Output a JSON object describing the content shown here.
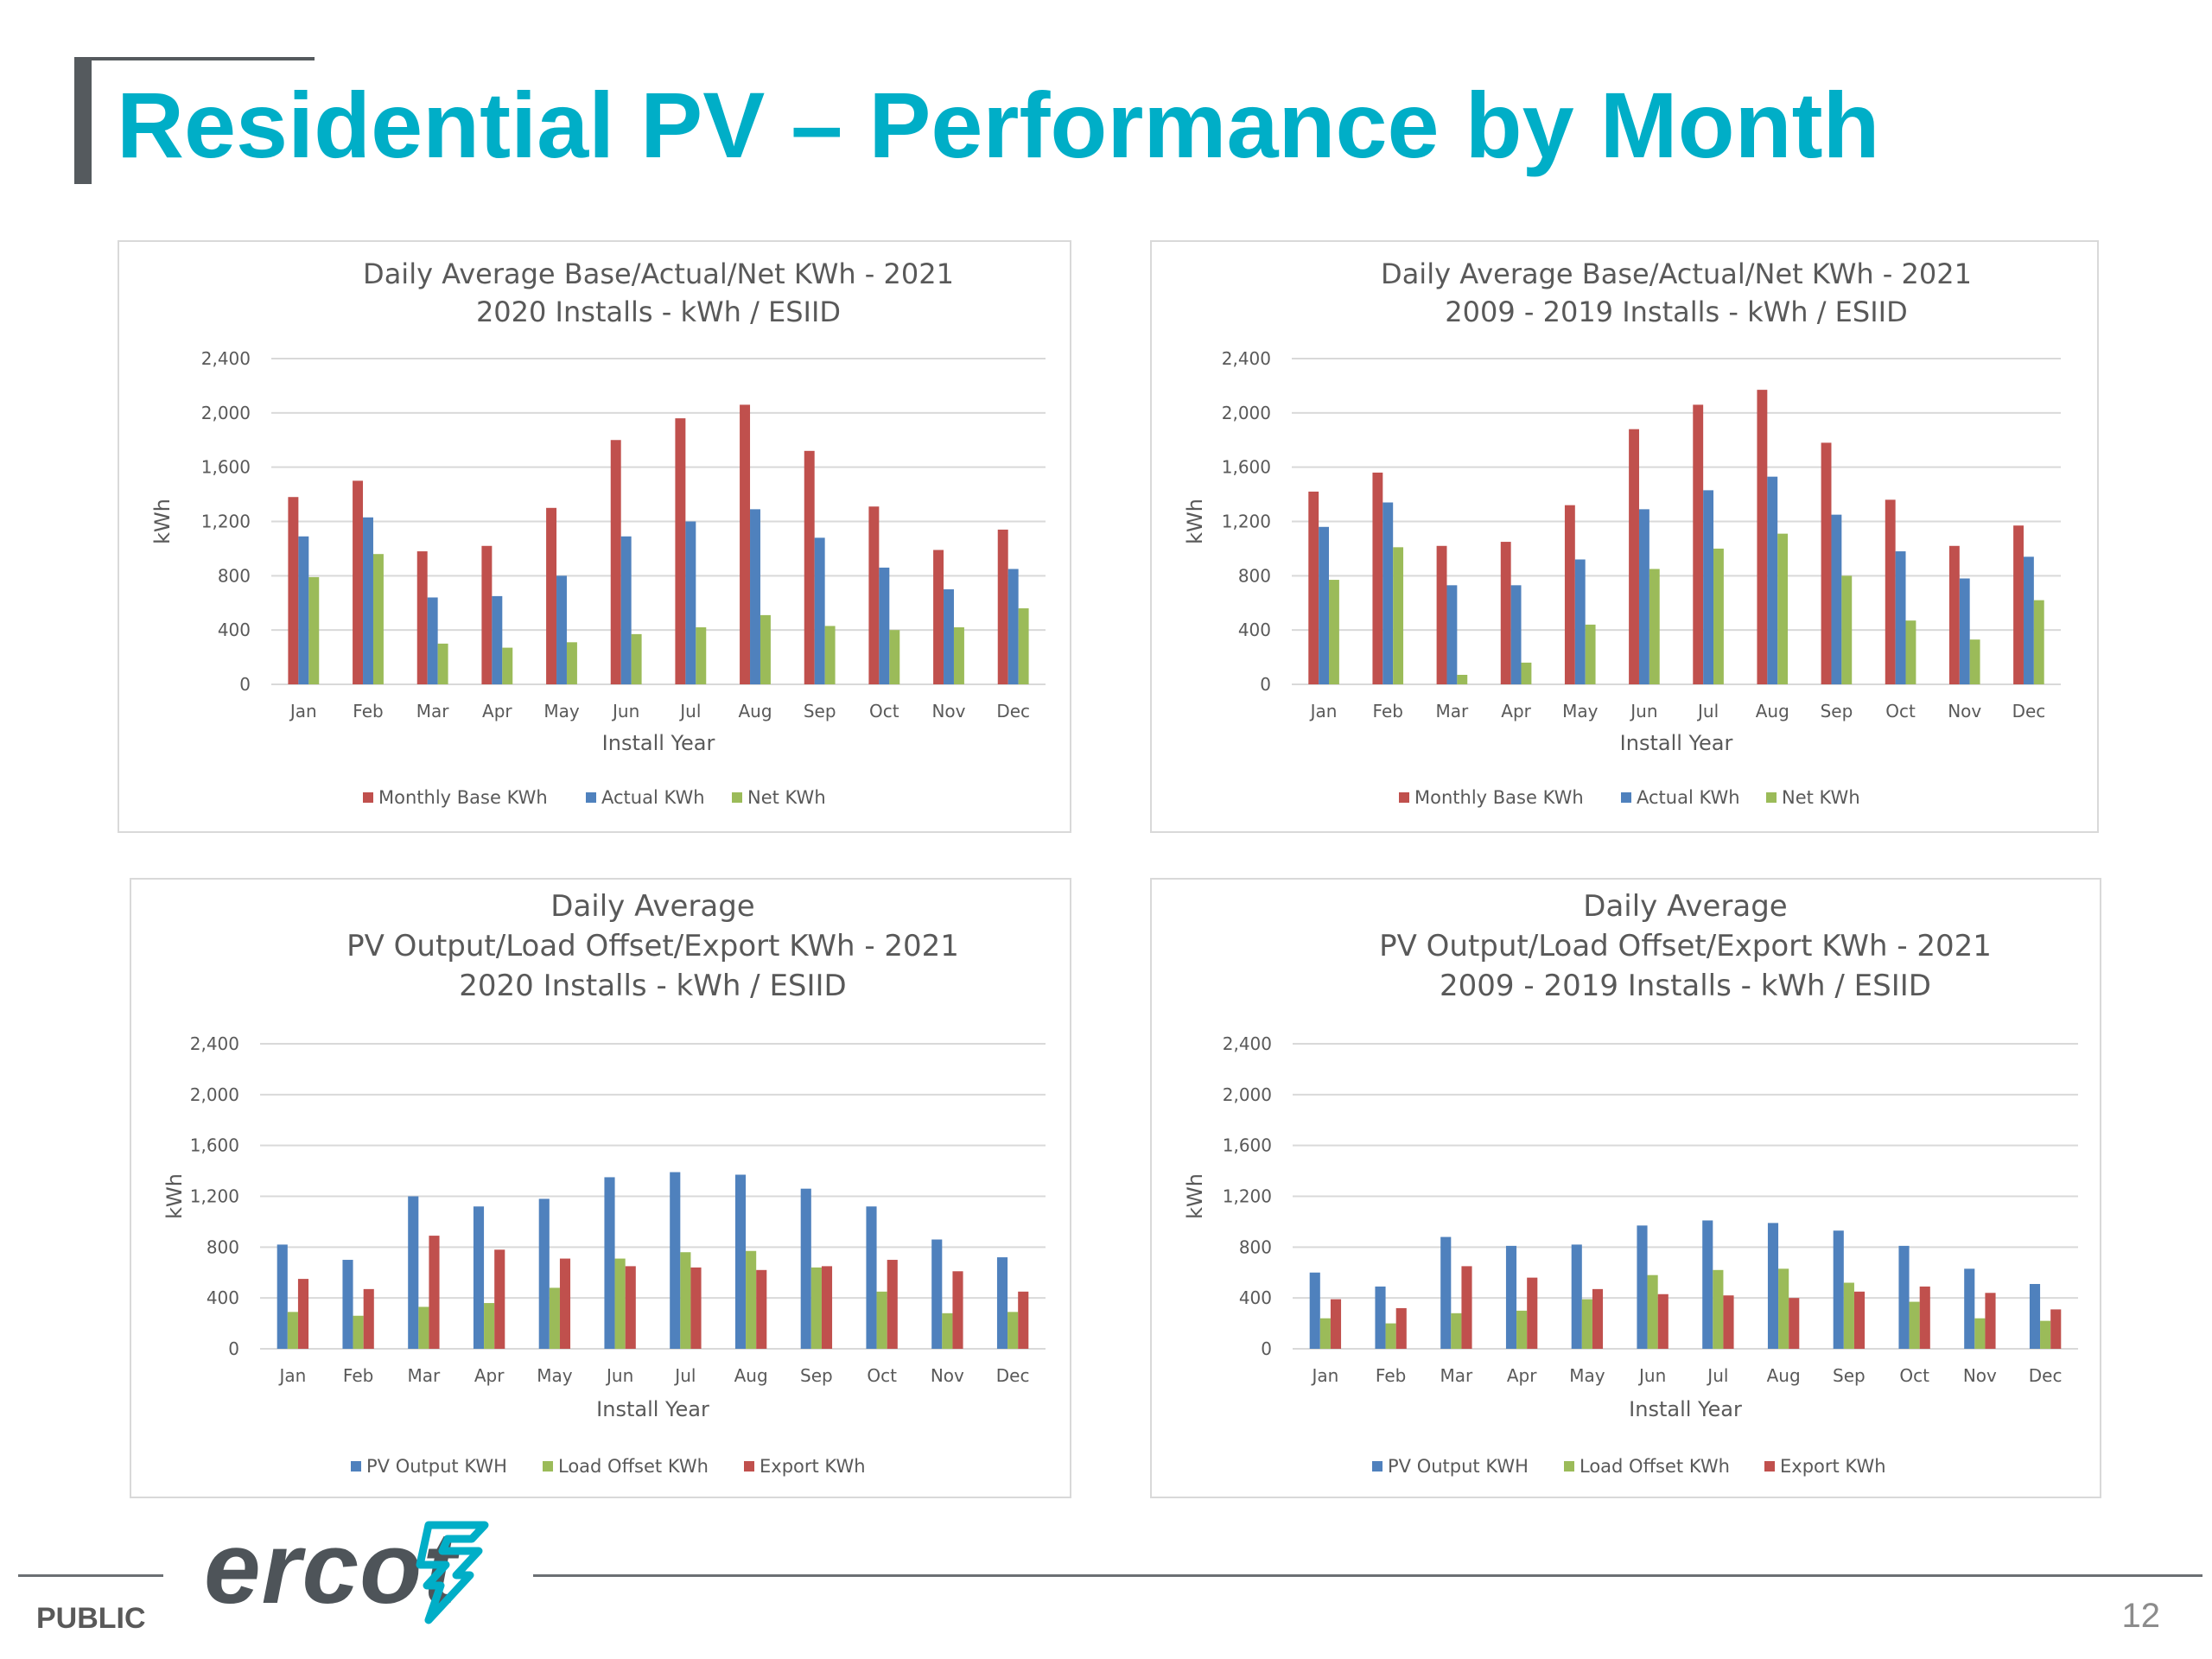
{
  "slide": {
    "title": "Residential PV – Performance by Month",
    "classification": "PUBLIC",
    "page_number": "12",
    "logo_text": "ercot",
    "logo_mark": "ercot-logo-mark"
  },
  "colors": {
    "title": "#00aec7",
    "red": "#c0504d",
    "blue": "#4f81bd",
    "green": "#9bbb59",
    "grid": "#d9d9d9",
    "text": "#595959"
  },
  "chart_data": [
    {
      "type": "bar",
      "title_lines": [
        "Daily Average Base/Actual/Net KWh - 2021",
        "2020 Installs - kWh / ESIID"
      ],
      "xlabel": "Install Year",
      "ylabel": "kWh",
      "ylim": [
        0,
        2400
      ],
      "yticks": [
        "0",
        "400",
        "800",
        "1,200",
        "1,600",
        "2,000",
        "2,400"
      ],
      "grid": true,
      "legend_position": "bottom",
      "categories": [
        "Jan",
        "Feb",
        "Mar",
        "Apr",
        "May",
        "Jun",
        "Jul",
        "Aug",
        "Sep",
        "Oct",
        "Nov",
        "Dec"
      ],
      "series": [
        {
          "name": "Monthly Base KWh",
          "color": "red",
          "values": [
            1380,
            1500,
            980,
            1020,
            1300,
            1800,
            1960,
            2060,
            1720,
            1310,
            990,
            1140
          ]
        },
        {
          "name": "Actual KWh",
          "color": "blue",
          "values": [
            1090,
            1230,
            640,
            650,
            800,
            1090,
            1200,
            1290,
            1080,
            860,
            700,
            850
          ]
        },
        {
          "name": "Net KWh",
          "color": "green",
          "values": [
            790,
            960,
            300,
            270,
            310,
            370,
            420,
            510,
            430,
            400,
            420,
            560
          ]
        }
      ]
    },
    {
      "type": "bar",
      "title_lines": [
        "Daily Average Base/Actual/Net KWh - 2021",
        "2009 - 2019 Installs - kWh / ESIID"
      ],
      "xlabel": "Install Year",
      "ylabel": "kWh",
      "ylim": [
        0,
        2400
      ],
      "yticks": [
        "0",
        "400",
        "800",
        "1,200",
        "1,600",
        "2,000",
        "2,400"
      ],
      "grid": true,
      "legend_position": "bottom",
      "categories": [
        "Jan",
        "Feb",
        "Mar",
        "Apr",
        "May",
        "Jun",
        "Jul",
        "Aug",
        "Sep",
        "Oct",
        "Nov",
        "Dec"
      ],
      "series": [
        {
          "name": "Monthly Base KWh",
          "color": "red",
          "values": [
            1420,
            1560,
            1020,
            1050,
            1320,
            1880,
            2060,
            2170,
            1780,
            1360,
            1020,
            1170
          ]
        },
        {
          "name": "Actual KWh",
          "color": "blue",
          "values": [
            1160,
            1340,
            730,
            730,
            920,
            1290,
            1430,
            1530,
            1250,
            980,
            780,
            940
          ]
        },
        {
          "name": "Net KWh",
          "color": "green",
          "values": [
            770,
            1010,
            70,
            160,
            440,
            850,
            1000,
            1110,
            800,
            470,
            330,
            620
          ]
        }
      ]
    },
    {
      "type": "bar",
      "title_lines": [
        "Daily Average",
        "PV Output/Load Offset/Export  KWh - 2021",
        "2020  Installs - kWh / ESIID"
      ],
      "xlabel": "Install Year",
      "ylabel": "kWh",
      "ylim": [
        0,
        2400
      ],
      "yticks": [
        "0",
        "400",
        "800",
        "1,200",
        "1,600",
        "2,000",
        "2,400"
      ],
      "grid": true,
      "legend_position": "bottom",
      "categories": [
        "Jan",
        "Feb",
        "Mar",
        "Apr",
        "May",
        "Jun",
        "Jul",
        "Aug",
        "Sep",
        "Oct",
        "Nov",
        "Dec"
      ],
      "series": [
        {
          "name": "PV Output KWH",
          "color": "blue",
          "values": [
            820,
            700,
            1200,
            1120,
            1180,
            1350,
            1390,
            1370,
            1260,
            1120,
            860,
            720
          ]
        },
        {
          "name": "Load Offset KWh",
          "color": "green",
          "values": [
            290,
            260,
            330,
            360,
            480,
            710,
            760,
            770,
            640,
            450,
            280,
            290
          ]
        },
        {
          "name": "Export KWh",
          "color": "red",
          "values": [
            550,
            470,
            890,
            780,
            710,
            650,
            640,
            620,
            650,
            700,
            610,
            450
          ]
        }
      ]
    },
    {
      "type": "bar",
      "title_lines": [
        "Daily Average",
        "PV Output/Load Offset/Export  KWh - 2021",
        "2009 - 2019  Installs - kWh / ESIID"
      ],
      "xlabel": "Install Year",
      "ylabel": "kWh",
      "ylim": [
        0,
        2400
      ],
      "yticks": [
        "0",
        "400",
        "800",
        "1,200",
        "1,600",
        "2,000",
        "2,400"
      ],
      "grid": true,
      "legend_position": "bottom",
      "categories": [
        "Jan",
        "Feb",
        "Mar",
        "Apr",
        "May",
        "Jun",
        "Jul",
        "Aug",
        "Sep",
        "Oct",
        "Nov",
        "Dec"
      ],
      "series": [
        {
          "name": "PV Output KWH",
          "color": "blue",
          "values": [
            600,
            490,
            880,
            810,
            820,
            970,
            1010,
            990,
            930,
            810,
            630,
            510
          ]
        },
        {
          "name": "Load Offset KWh",
          "color": "green",
          "values": [
            240,
            200,
            280,
            300,
            390,
            580,
            620,
            630,
            520,
            370,
            240,
            220
          ]
        },
        {
          "name": "Export KWh",
          "color": "red",
          "values": [
            390,
            320,
            650,
            560,
            470,
            430,
            420,
            400,
            450,
            490,
            440,
            310
          ]
        }
      ]
    }
  ]
}
